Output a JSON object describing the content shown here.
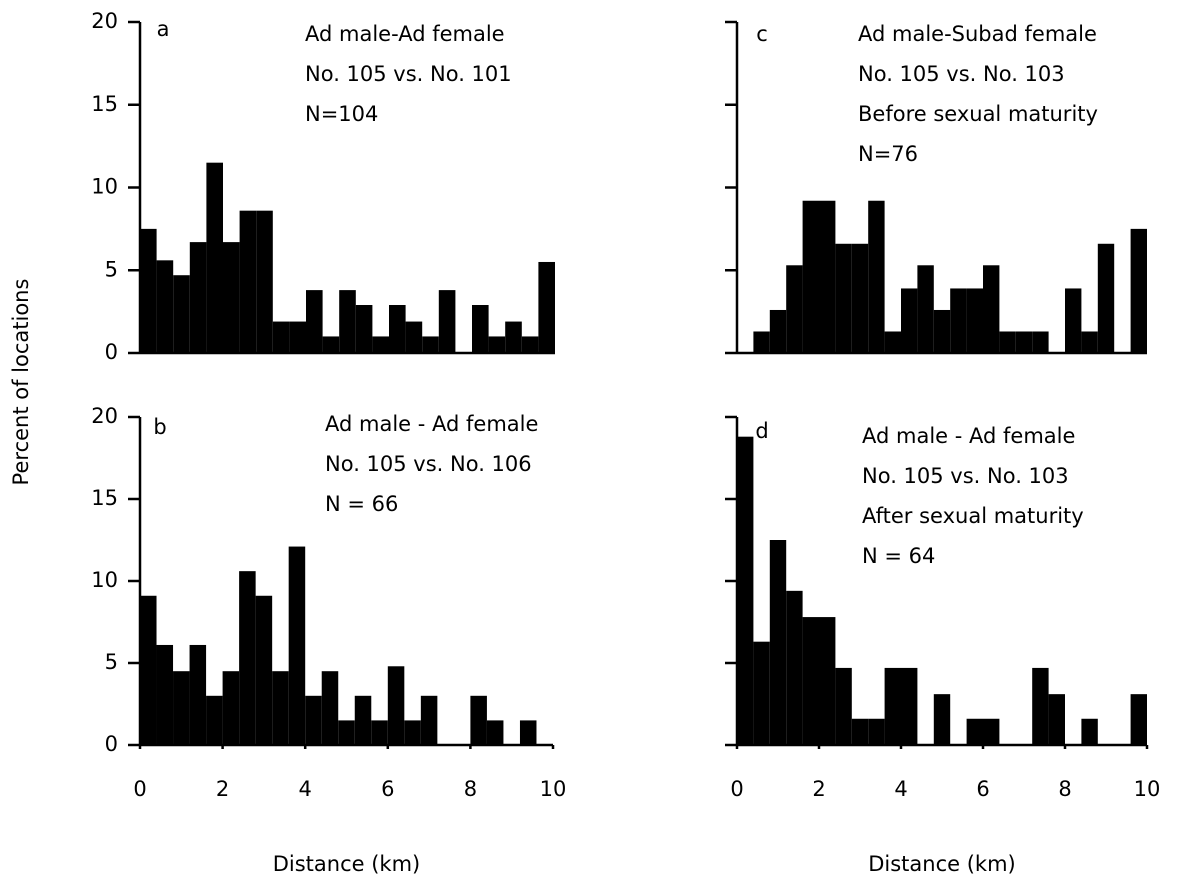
{
  "chart_data": [
    {
      "type": "histogram",
      "title": "a",
      "annotations": [
        "Ad male-Ad female",
        "No. 105 vs. No. 101",
        "N=104"
      ],
      "ylabel": "Percent of locations",
      "bins": [
        0,
        0.4,
        0.8,
        1.2,
        1.6,
        2,
        2.4,
        2.8,
        3.2,
        3.6,
        4,
        4.4,
        4.8,
        5.2,
        5.6,
        6,
        6.4,
        6.8,
        7.2,
        7.6,
        8,
        8.4,
        8.8,
        9.2,
        9.6,
        10
      ],
      "values": [
        7.5,
        5.6,
        4.7,
        6.7,
        11.5,
        6.7,
        8.6,
        8.6,
        1.9,
        1.9,
        3.8,
        1.0,
        3.8,
        2.9,
        1.0,
        2.9,
        1.9,
        1.0,
        3.8,
        0,
        2.9,
        1.0,
        1.9,
        1.0,
        5.5
      ],
      "color": "#000000",
      "xlim": [
        0,
        10
      ],
      "ylim": [
        0,
        20
      ],
      "yticks": [
        0,
        5,
        10,
        15,
        20
      ]
    },
    {
      "type": "histogram",
      "title": "b",
      "annotations": [
        "Ad male - Ad female",
        "No. 105 vs. No. 106",
        "N = 66"
      ],
      "xlabel": "Distance (km)",
      "bins": [
        0,
        0.4,
        0.8,
        1.2,
        1.6,
        2,
        2.4,
        2.8,
        3.2,
        3.6,
        4,
        4.4,
        4.8,
        5.2,
        5.6,
        6,
        6.4,
        6.8,
        7.2,
        7.6,
        8,
        8.4,
        8.8,
        9.2,
        9.6,
        10
      ],
      "values": [
        9.1,
        6.1,
        4.5,
        6.1,
        3.0,
        4.5,
        10.6,
        9.1,
        4.5,
        12.1,
        3.0,
        4.5,
        1.5,
        3.0,
        1.5,
        4.8,
        1.5,
        3.0,
        0,
        0,
        3.0,
        1.5,
        0,
        1.5,
        0
      ],
      "color": "#000000",
      "xlim": [
        0,
        10
      ],
      "ylim": [
        0,
        20
      ],
      "xticks": [
        0,
        2,
        4,
        6,
        8,
        10
      ],
      "yticks": [
        0,
        5,
        10,
        15,
        20
      ]
    },
    {
      "type": "histogram",
      "title": "c",
      "annotations": [
        "Ad male-Subad female",
        "No. 105 vs. No. 103",
        "Before sexual maturity",
        "N=76"
      ],
      "bins": [
        0,
        0.4,
        0.8,
        1.2,
        1.6,
        2,
        2.4,
        2.8,
        3.2,
        3.6,
        4,
        4.4,
        4.8,
        5.2,
        5.6,
        6,
        6.4,
        6.8,
        7.2,
        7.6,
        8,
        8.4,
        8.8,
        9.2,
        9.6,
        10
      ],
      "values": [
        0,
        1.3,
        2.6,
        5.3,
        9.2,
        9.2,
        6.6,
        6.6,
        9.2,
        1.3,
        3.9,
        5.3,
        2.6,
        3.9,
        3.9,
        5.3,
        1.3,
        1.3,
        1.3,
        0,
        3.9,
        1.3,
        6.6,
        0,
        7.5
      ],
      "color": "#000000",
      "xlim": [
        0,
        10
      ],
      "ylim": [
        0,
        20
      ],
      "yticks": [
        0,
        5,
        10,
        15,
        20
      ],
      "ytick_labels": false
    },
    {
      "type": "histogram",
      "title": "d",
      "annotations": [
        "Ad male - Ad female",
        "No. 105 vs. No. 103",
        "After sexual maturity",
        "N = 64"
      ],
      "xlabel": "Distance (km)",
      "bins": [
        0,
        0.4,
        0.8,
        1.2,
        1.6,
        2,
        2.4,
        2.8,
        3.2,
        3.6,
        4,
        4.4,
        4.8,
        5.2,
        5.6,
        6,
        6.4,
        6.8,
        7.2,
        7.6,
        8,
        8.4,
        8.8,
        9.2,
        9.6,
        10
      ],
      "values": [
        18.8,
        6.3,
        12.5,
        9.4,
        7.8,
        7.8,
        4.7,
        1.6,
        1.6,
        4.7,
        4.7,
        0,
        3.1,
        0,
        1.6,
        1.6,
        0,
        0,
        4.7,
        3.1,
        0,
        1.6,
        0,
        0,
        3.1
      ],
      "color": "#000000",
      "xlim": [
        0,
        10
      ],
      "ylim": [
        0,
        20
      ],
      "xticks": [
        0,
        2,
        4,
        6,
        8,
        10
      ],
      "yticks": [
        0,
        5,
        10,
        15,
        20
      ],
      "ytick_labels": false
    }
  ]
}
